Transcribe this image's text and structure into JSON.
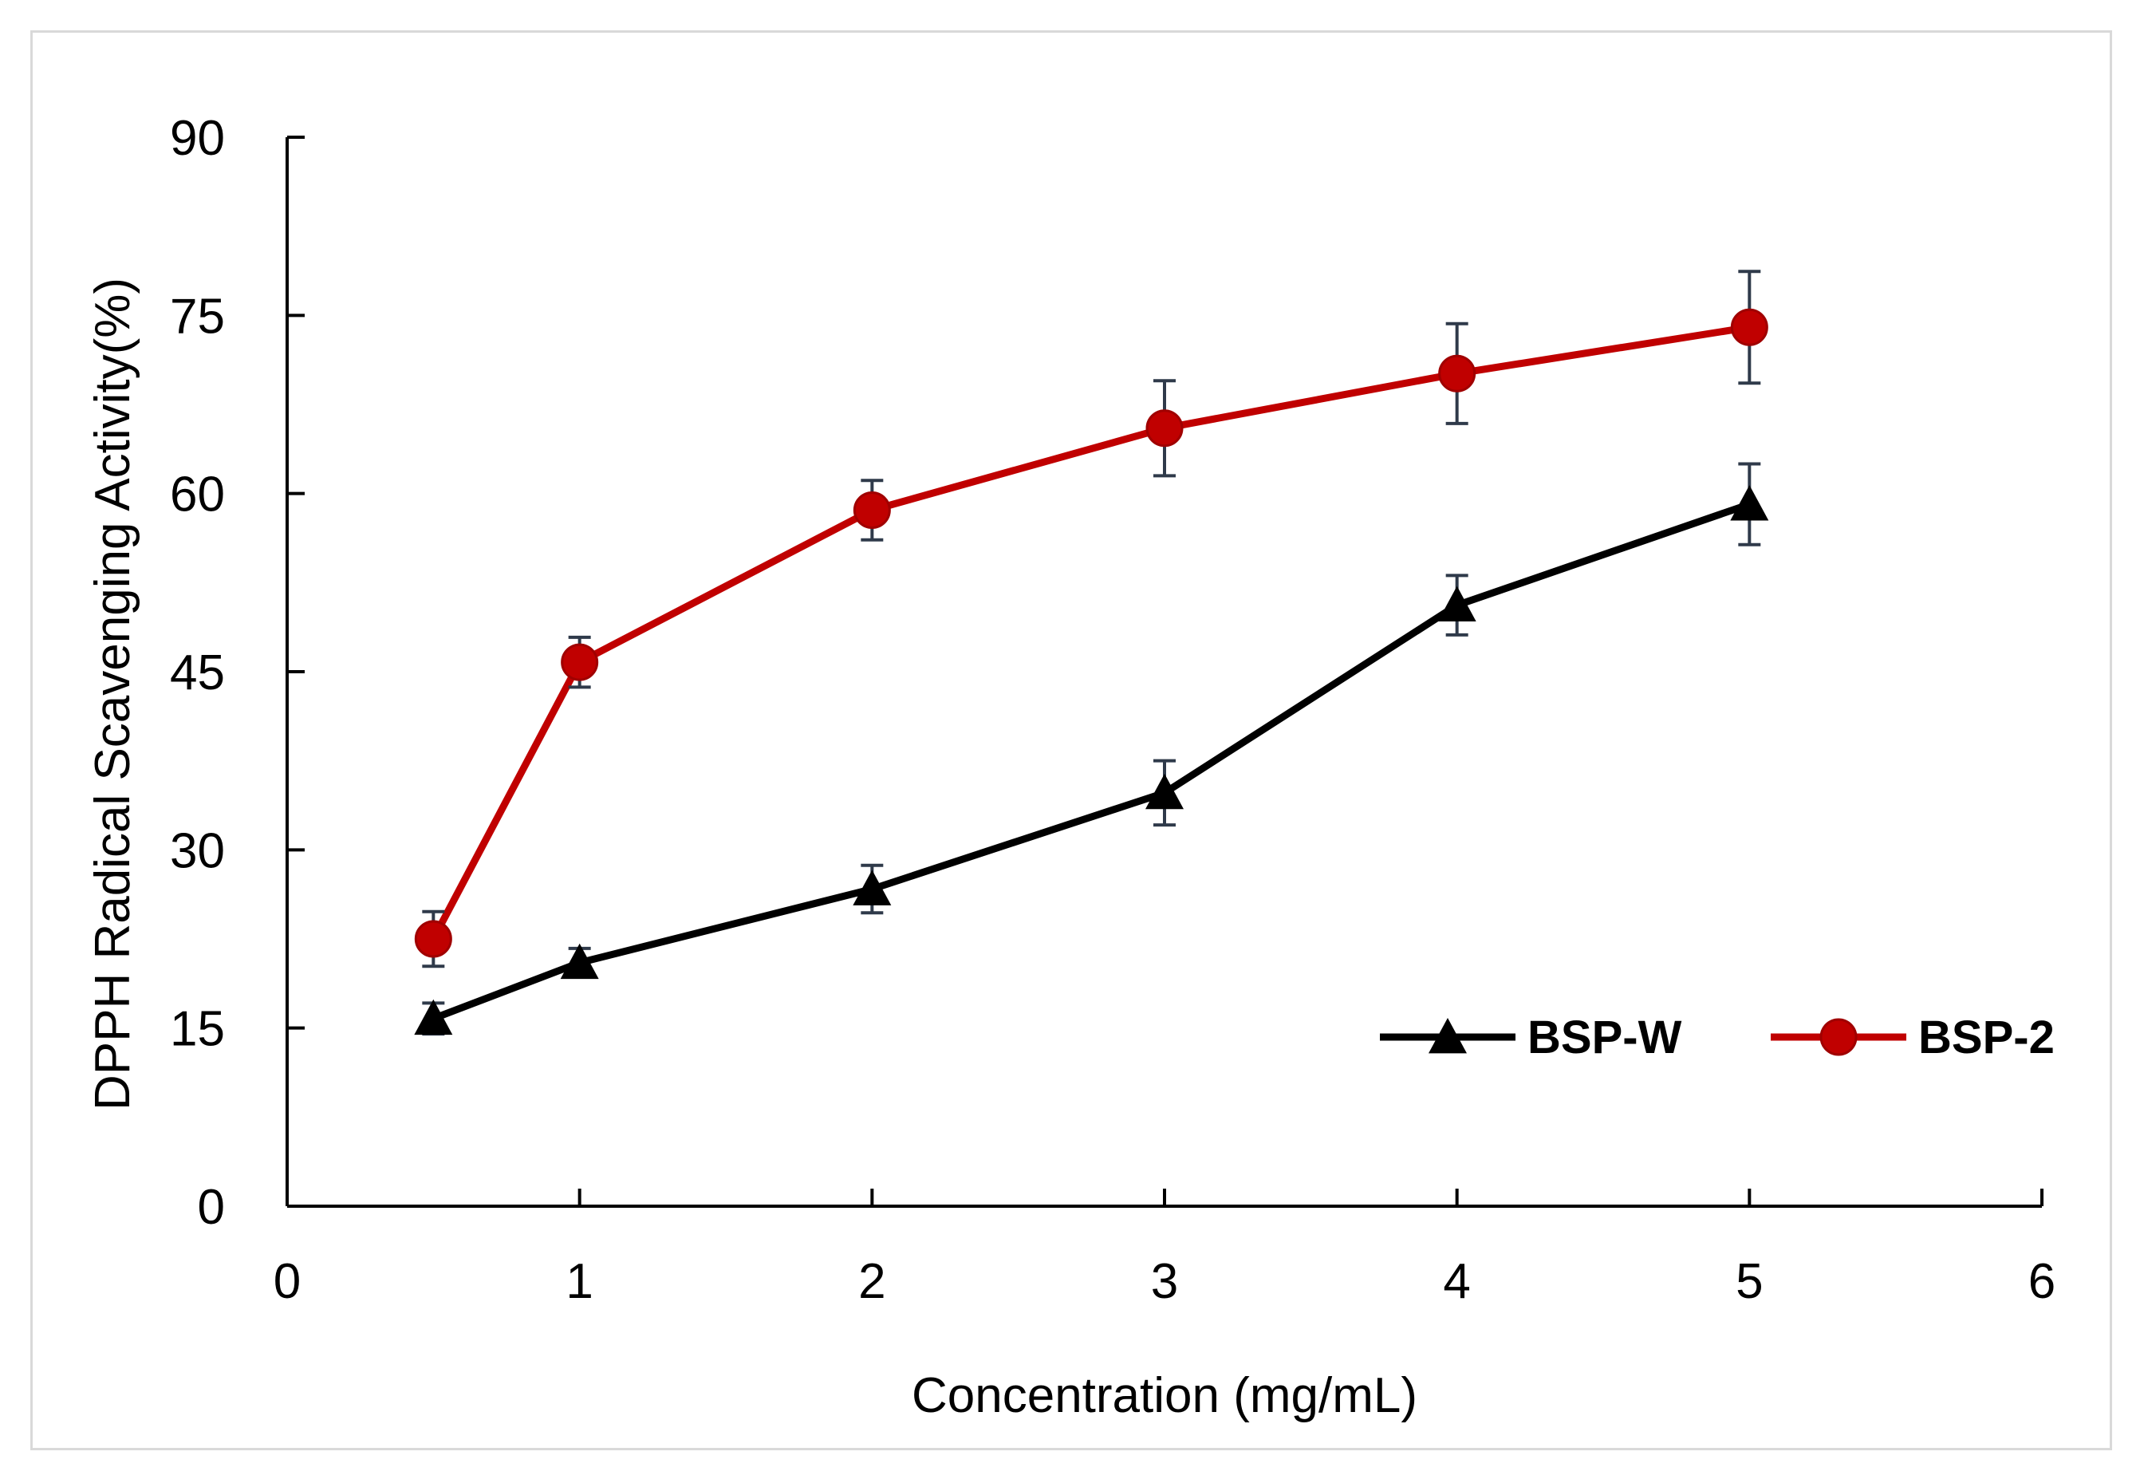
{
  "chart_data": {
    "type": "line",
    "title": "",
    "xlabel": "Concentration (mg/mL)",
    "ylabel": "DPPH  Radical Scavenging Activity(%)",
    "xlim": [
      0,
      6
    ],
    "ylim": [
      0,
      90
    ],
    "xticks": [
      0,
      1,
      2,
      3,
      4,
      5,
      6
    ],
    "yticks": [
      0,
      15,
      30,
      45,
      60,
      75,
      90
    ],
    "grid": false,
    "legend_position": "bottom-right",
    "series": [
      {
        "name": "BSP-W",
        "color": "#000000",
        "marker": "triangle",
        "x": [
          0.5,
          1,
          2,
          3,
          4,
          5
        ],
        "y": [
          15.8,
          20.5,
          26.7,
          34.8,
          50.6,
          59.1
        ],
        "error": [
          1.3,
          1.2,
          2.0,
          2.7,
          2.5,
          3.4
        ]
      },
      {
        "name": "BSP-2",
        "color": "#c00000",
        "marker": "circle",
        "x": [
          0.5,
          1,
          2,
          3,
          4,
          5
        ],
        "y": [
          22.5,
          45.8,
          58.6,
          65.5,
          70.1,
          74.0
        ],
        "error": [
          2.3,
          2.1,
          2.5,
          4.0,
          4.2,
          4.7
        ]
      }
    ],
    "error_bar_color": "#2f3a4a"
  }
}
